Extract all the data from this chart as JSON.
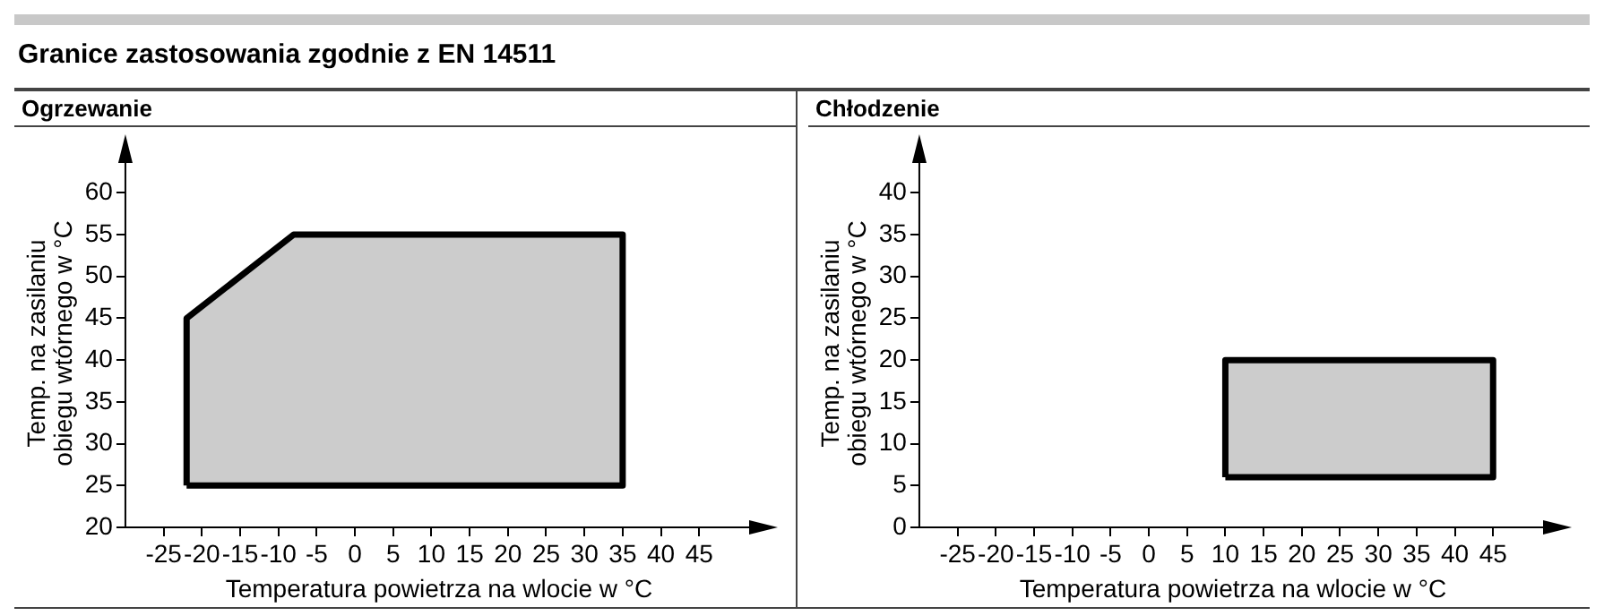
{
  "chart_data": [
    {
      "type": "area",
      "title": "Ogrzewanie",
      "annotations": [
        "Granice zastosowania zgodnie z EN 14511"
      ],
      "xlabel": "Temperatura powietrza na wlocie w °C",
      "ylabel": "Temp. na zasilaniu obiegu wtórnego w °C",
      "xlim": [
        -30,
        52
      ],
      "xticks": [
        -25,
        -20,
        -15,
        -10,
        -5,
        0,
        5,
        10,
        15,
        20,
        25,
        30,
        35,
        40,
        45
      ],
      "ylim": [
        20,
        64
      ],
      "yticks": [
        20,
        25,
        30,
        35,
        40,
        45,
        50,
        55,
        60
      ],
      "grid": false,
      "legend": false,
      "series": [
        {
          "color": "#cccccc",
          "x": [
            -22,
            -22,
            -8,
            35,
            35,
            -22
          ],
          "values": [
            25,
            45,
            55,
            55,
            25,
            25
          ]
        }
      ]
    },
    {
      "type": "area",
      "title": "Chłodzenie",
      "xlabel": "Temperatura powietrza na wlocie w °C",
      "ylabel": "Temp. na zasilaniu obiegu wtórnego w °C",
      "xlim": [
        -30,
        52
      ],
      "xticks": [
        -25,
        -20,
        -15,
        -10,
        -5,
        0,
        5,
        10,
        15,
        20,
        25,
        30,
        35,
        40,
        45
      ],
      "ylim": [
        0,
        44
      ],
      "yticks": [
        0,
        5,
        10,
        15,
        20,
        25,
        30,
        35,
        40
      ],
      "grid": false,
      "legend": false,
      "series": [
        {
          "color": "#cccccc",
          "x": [
            10,
            10,
            45,
            45,
            10
          ],
          "values": [
            6,
            20,
            20,
            6,
            6
          ]
        }
      ]
    }
  ]
}
